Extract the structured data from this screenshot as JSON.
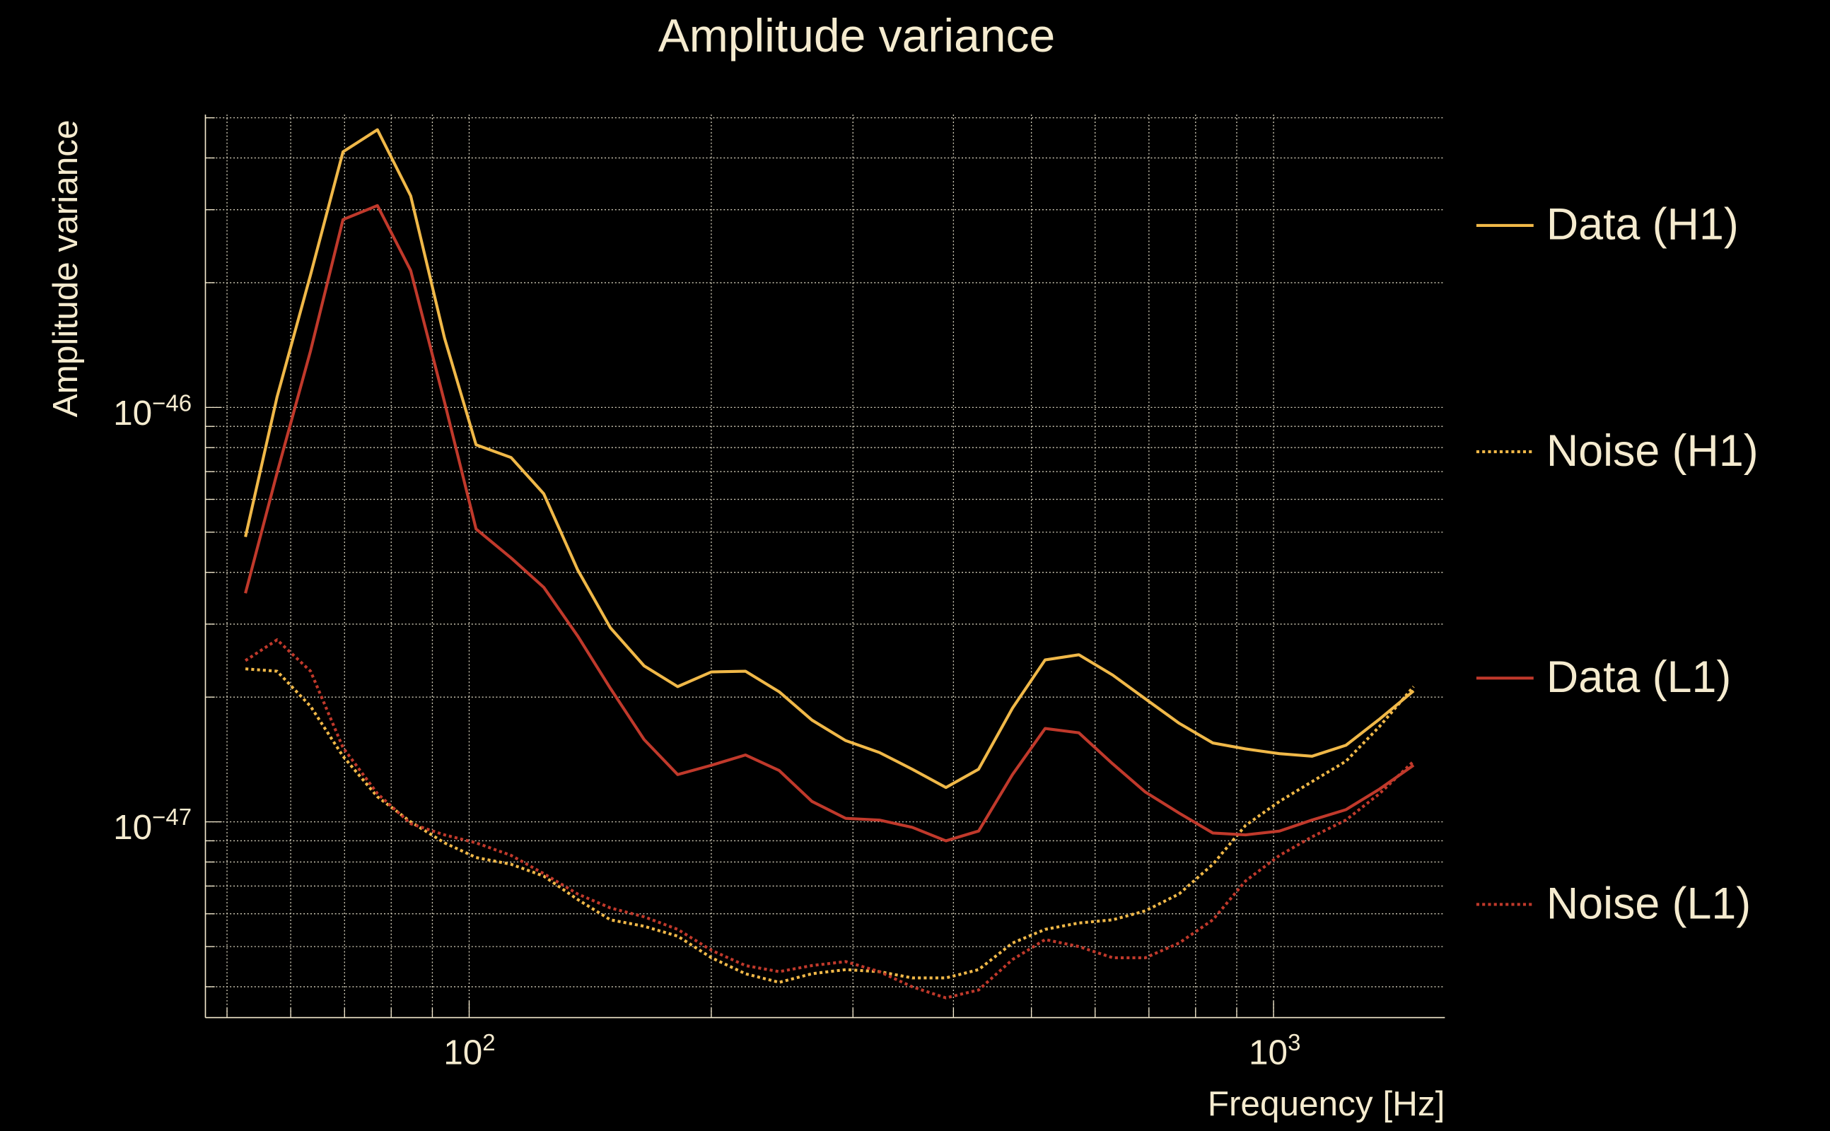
{
  "chart_data": {
    "type": "line",
    "title": "Amplitude variance",
    "xlabel": "Frequency [Hz]",
    "ylabel": "Amplitude variance",
    "xscale": "log",
    "yscale": "log",
    "xlim": [
      47,
      1633
    ],
    "ylim": [
      3.37e-48,
      5.09e-46
    ],
    "xticks": [
      {
        "value": 100,
        "base": "10",
        "exp": "2"
      },
      {
        "value": 1000,
        "base": "10",
        "exp": "3"
      }
    ],
    "yticks": [
      {
        "value": 1e-46,
        "base": "10",
        "exp": "−46"
      },
      {
        "value": 1e-47,
        "base": "10",
        "exp": "−47"
      }
    ],
    "grid": true,
    "legend_position": "right",
    "x": [
      52.7,
      57.7,
      63.5,
      69.7,
      76.9,
      84.6,
      93.2,
      102,
      112.8,
      123.8,
      136.4,
      149.8,
      165,
      181.7,
      200.1,
      220.5,
      242.9,
      266.8,
      293.8,
      323.6,
      355.4,
      391.5,
      429.9,
      473.6,
      520,
      572.8,
      631,
      692.9,
      763.2,
      840.6,
      923,
      1017,
      1116,
      1230,
      1355,
      1493
    ],
    "series": [
      {
        "name": "Data (H1)",
        "color": "#f0b848",
        "style": "solid",
        "values": [
          4.87e-47,
          1.06e-46,
          2.09e-46,
          4.14e-46,
          4.68e-46,
          3.24e-46,
          1.47e-46,
          8.13e-47,
          7.57e-47,
          6.19e-47,
          4.06e-47,
          2.94e-47,
          2.38e-47,
          2.12e-47,
          2.3e-47,
          2.31e-47,
          2.06e-47,
          1.76e-47,
          1.57e-47,
          1.47e-47,
          1.34e-47,
          1.21e-47,
          1.34e-47,
          1.88e-47,
          2.46e-47,
          2.53e-47,
          2.26e-47,
          1.98e-47,
          1.73e-47,
          1.55e-47,
          1.5e-47,
          1.46e-47,
          1.44e-47,
          1.53e-47,
          1.77e-47,
          2.07e-47
        ]
      },
      {
        "name": "Noise (H1)",
        "color": "#f0b848",
        "style": "dotted",
        "values": [
          2.34e-47,
          2.31e-47,
          1.9e-47,
          1.44e-47,
          1.15e-47,
          1e-47,
          8.9e-48,
          8.2e-48,
          7.9e-48,
          7.4e-48,
          6.5e-48,
          5.8e-48,
          5.6e-48,
          5.3e-48,
          4.7e-48,
          4.3e-48,
          4.1e-48,
          4.3e-48,
          4.4e-48,
          4.35e-48,
          4.2e-48,
          4.2e-48,
          4.4e-48,
          5.1e-48,
          5.5e-48,
          5.7e-48,
          5.8e-48,
          6.1e-48,
          6.7e-48,
          7.9e-48,
          9.8e-48,
          1.12e-47,
          1.25e-47,
          1.4e-47,
          1.7e-47,
          2.12e-47
        ]
      },
      {
        "name": "Data (L1)",
        "color": "#c0392b",
        "style": "solid",
        "values": [
          3.56e-47,
          6.95e-47,
          1.37e-46,
          2.84e-46,
          3.07e-46,
          2.14e-46,
          1.03e-46,
          5.09e-47,
          4.33e-47,
          3.68e-47,
          2.81e-47,
          2.1e-47,
          1.58e-47,
          1.3e-47,
          1.37e-47,
          1.45e-47,
          1.33e-47,
          1.12e-47,
          1.02e-47,
          1.01e-47,
          9.7e-48,
          9e-48,
          9.5e-48,
          1.3e-47,
          1.68e-47,
          1.64e-47,
          1.38e-47,
          1.18e-47,
          1.05e-47,
          9.4e-48,
          9.3e-48,
          9.5e-48,
          1.01e-47,
          1.07e-47,
          1.2e-47,
          1.37e-47
        ]
      },
      {
        "name": "Noise (L1)",
        "color": "#c0392b",
        "style": "dotted",
        "values": [
          2.45e-47,
          2.75e-47,
          2.31e-47,
          1.51e-47,
          1.17e-47,
          9.9e-48,
          9.3e-48,
          8.9e-48,
          8.3e-48,
          7.5e-48,
          6.7e-48,
          6.2e-48,
          5.9e-48,
          5.5e-48,
          4.9e-48,
          4.5e-48,
          4.35e-48,
          4.5e-48,
          4.6e-48,
          4.35e-48,
          4e-48,
          3.76e-48,
          3.93e-48,
          4.65e-48,
          5.2e-48,
          5e-48,
          4.7e-48,
          4.7e-48,
          5.1e-48,
          5.8e-48,
          7.2e-48,
          8.3e-48,
          9.2e-48,
          1.01e-47,
          1.17e-47,
          1.4e-47
        ]
      }
    ]
  }
}
